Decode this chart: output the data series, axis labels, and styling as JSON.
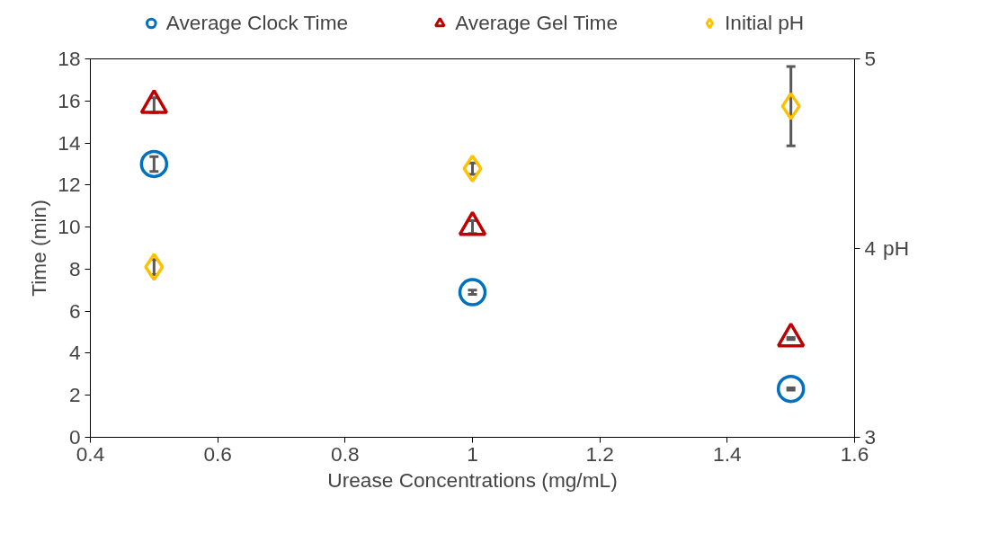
{
  "chart_data": {
    "type": "scatter",
    "xlabel": "Urease Concentrations (mg/mL)",
    "ylabel": "Time (min)",
    "y2label": "pH",
    "x": [
      0.5,
      1,
      1.5
    ],
    "xlim": [
      0.4,
      1.6
    ],
    "xticks": [
      0.4,
      0.6,
      0.8,
      {
        "value": 1,
        "label": "1"
      },
      1.2,
      1.4,
      1.6
    ],
    "ylim": [
      0,
      18
    ],
    "yticks": [
      0,
      2,
      4,
      6,
      8,
      10,
      12,
      14,
      16,
      18
    ],
    "y2lim": [
      3,
      5
    ],
    "y2ticks": [
      3,
      4,
      5
    ],
    "grid": false,
    "legend": "top",
    "series": [
      {
        "name": "Average Clock Time",
        "color": "#0070c0",
        "marker": "circle",
        "values": [
          13.0,
          6.9,
          2.3
        ],
        "errors": [
          0.35,
          0.1,
          0.05
        ]
      },
      {
        "name": "Average Gel Time",
        "color": "#c00000",
        "marker": "triangle",
        "values": [
          15.8,
          10.0,
          4.7
        ],
        "errors": [
          0.35,
          0.3,
          0.05
        ]
      },
      {
        "name": "Initial pH",
        "color": "#ffc000",
        "marker": "diamond",
        "axis": "y2",
        "values": [
          3.9,
          4.42,
          4.75
        ],
        "errors": [
          0.04,
          0.03,
          0.21
        ]
      }
    ]
  }
}
